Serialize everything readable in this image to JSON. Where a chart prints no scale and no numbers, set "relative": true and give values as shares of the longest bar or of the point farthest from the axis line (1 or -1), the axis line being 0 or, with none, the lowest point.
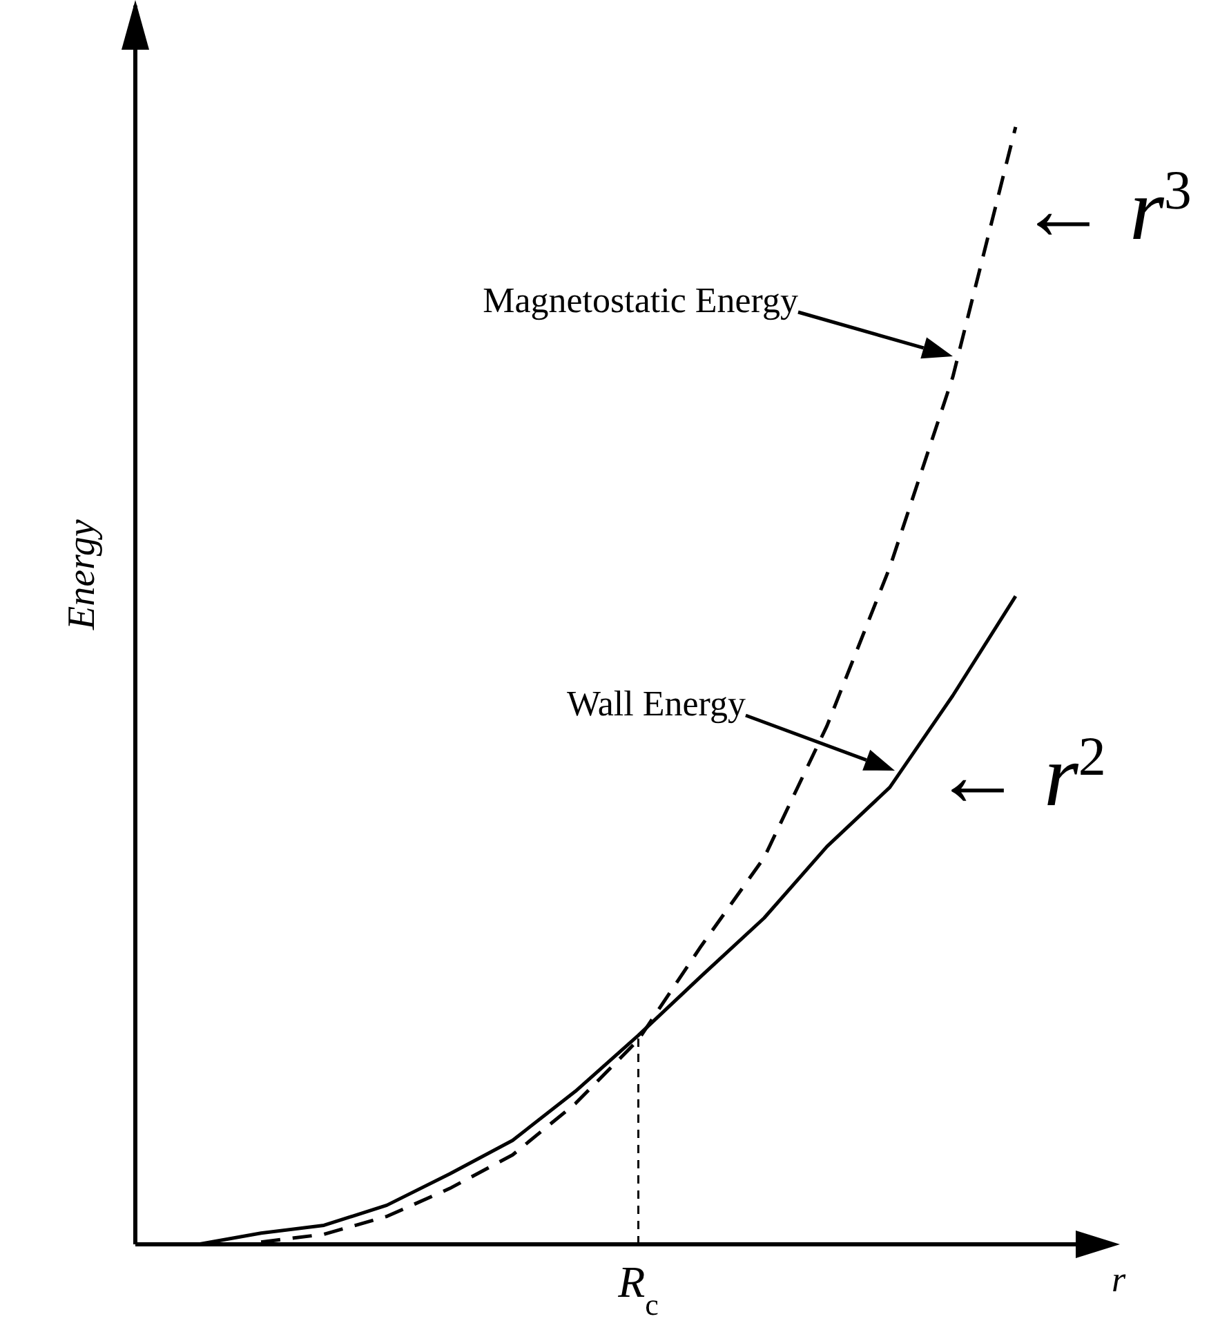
{
  "chart_data": {
    "type": "line",
    "relative": true,
    "xlabel": "r",
    "ylabel": "Energy",
    "marker": "none",
    "categories": [
      null,
      null,
      null,
      null,
      null,
      null,
      null,
      null,
      null,
      null,
      null,
      null,
      null,
      null,
      null,
      null
    ],
    "series": [
      {
        "color": "#000000",
        "line_style": "solid",
        "values": [
          null,
          0,
          0.01,
          0.017,
          0.035,
          0.063,
          0.093,
          0.137,
          0.187,
          0.24,
          0.292,
          0.356,
          0.409,
          0.491,
          0.58,
          null
        ]
      },
      {
        "color": "#000000",
        "line_style": "dashed",
        "values": [
          null,
          null,
          0.002,
          0.009,
          0.025,
          0.05,
          0.08,
          0.126,
          0.183,
          0.267,
          0.346,
          0.464,
          0.606,
          0.776,
          1,
          null
        ]
      }
    ],
    "ref_lines": [
      {
        "axis": "x",
        "label": "R$_{c}$",
        "line_style": "dashed",
        "color": "#000000"
      }
    ],
    "annotations": [
      "Magnetostatic Energy",
      "Wall Energy",
      "← r$^{3}$",
      "← r$^{2}$"
    ]
  }
}
